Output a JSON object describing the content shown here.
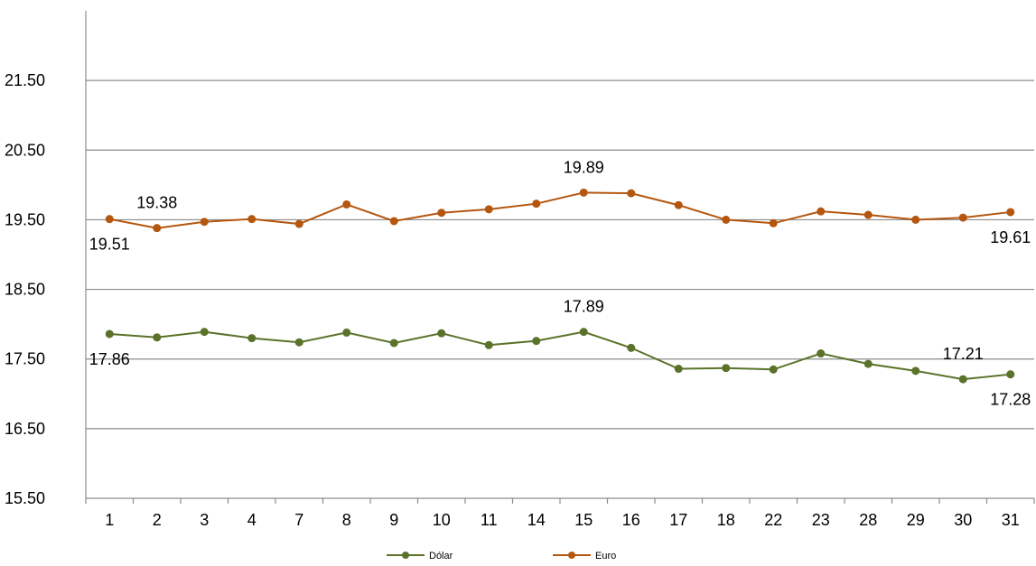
{
  "chart_data": {
    "type": "line",
    "categories": [
      "1",
      "2",
      "3",
      "4",
      "7",
      "8",
      "9",
      "10",
      "11",
      "14",
      "15",
      "16",
      "17",
      "18",
      "22",
      "23",
      "28",
      "29",
      "30",
      "31"
    ],
    "series": [
      {
        "name": "Dólar",
        "color": "#5a7229",
        "values": [
          17.86,
          17.81,
          17.89,
          17.8,
          17.74,
          17.88,
          17.73,
          17.87,
          17.7,
          17.76,
          17.89,
          17.66,
          17.36,
          17.37,
          17.35,
          17.58,
          17.43,
          17.33,
          17.21,
          17.28
        ]
      },
      {
        "name": "Euro",
        "color": "#b5560f",
        "values": [
          19.51,
          19.38,
          19.47,
          19.51,
          19.44,
          19.72,
          19.48,
          19.6,
          19.65,
          19.73,
          19.89,
          19.88,
          19.71,
          19.5,
          19.45,
          19.62,
          19.57,
          19.5,
          19.53,
          19.61
        ]
      }
    ],
    "data_labels": [
      {
        "series": 0,
        "index": 0,
        "text": "17.86",
        "position": "below"
      },
      {
        "series": 0,
        "index": 10,
        "text": "17.89",
        "position": "above"
      },
      {
        "series": 0,
        "index": 18,
        "text": "17.21",
        "position": "above"
      },
      {
        "series": 0,
        "index": 19,
        "text": "17.28",
        "position": "below"
      },
      {
        "series": 1,
        "index": 0,
        "text": "19.51",
        "position": "below"
      },
      {
        "series": 1,
        "index": 1,
        "text": "19.38",
        "position": "above"
      },
      {
        "series": 1,
        "index": 10,
        "text": "19.89",
        "position": "above"
      },
      {
        "series": 1,
        "index": 19,
        "text": "19.61",
        "position": "below"
      }
    ],
    "yticks": [
      15.5,
      16.5,
      17.5,
      18.5,
      19.5,
      20.5,
      21.5
    ],
    "ylim": [
      15.5,
      22.5
    ],
    "grid": true,
    "legend": "bottom",
    "title": "",
    "xlabel": "",
    "ylabel": ""
  }
}
